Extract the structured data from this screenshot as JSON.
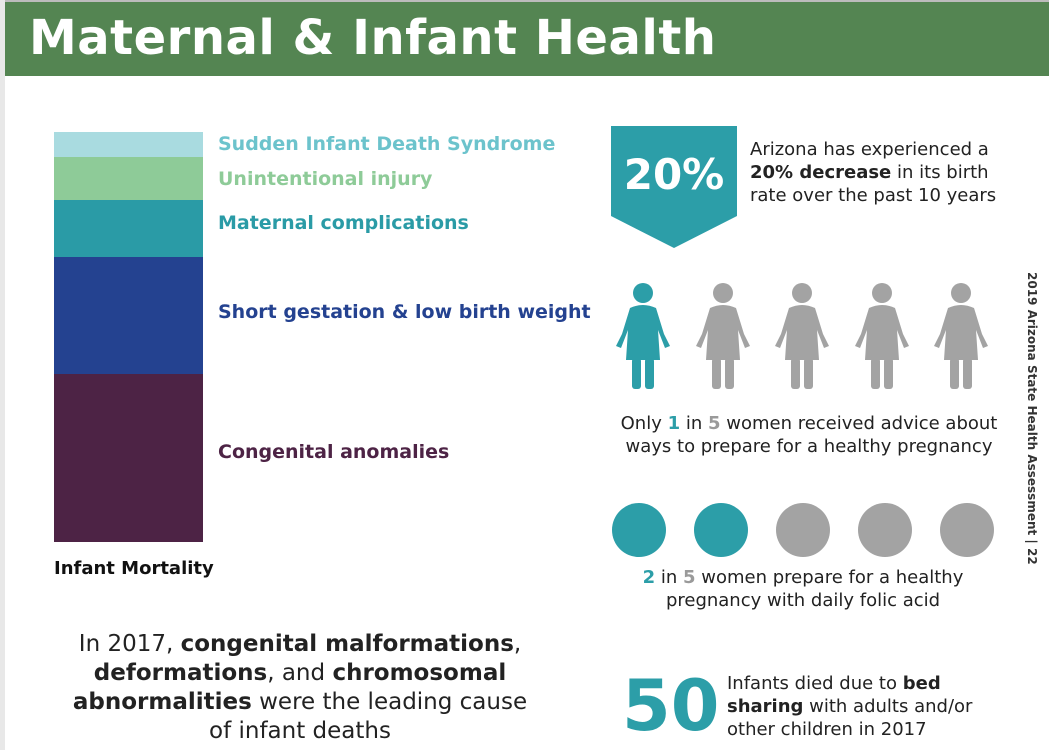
{
  "header": {
    "title": "Maternal & Infant Health"
  },
  "chart_data": {
    "type": "bar",
    "title": "Infant Mortality",
    "categories": [
      "Congenital anomalies",
      "Short gestation & low birth weight",
      "Maternal complications",
      "Unintentional injury",
      "Sudden Infant Death Syndrome"
    ],
    "values": [
      41,
      28.5,
      14,
      10.5,
      6
    ],
    "colors": [
      "#4d2345",
      "#244290",
      "#2a9ba6",
      "#8ecb98",
      "#a9dbe0"
    ],
    "label_colors": [
      "#4d2345",
      "#244290",
      "#2a9ba6",
      "#8ecb98",
      "#6cc3cc"
    ],
    "stacked": true
  },
  "stack_labels": {
    "sids": "Sudden Infant Death Syndrome",
    "injury": "Unintentional injury",
    "maternal": "Maternal complications",
    "gestation": "Short gestation & low birth weight",
    "congenital": "Congenital anomalies"
  },
  "stack_title": "Infant Mortality",
  "leading_cause": {
    "p1": "In 2017, ",
    "b1": "congenital malformations",
    "p2": ", ",
    "b2": "deformations",
    "p3": ", and ",
    "b3": "chromosomal abnormalities",
    "p4": " were the leading cause of infant deaths"
  },
  "birth_rate": {
    "badge": "20%",
    "p1": "Arizona has experienced a ",
    "b1": "20% decrease",
    "p2": " in its birth rate over the past 10 years"
  },
  "advice": {
    "p1": "Only ",
    "n1": "1",
    "p2": " in ",
    "n2": "5",
    "p3": " women received advice about ways to prepare for a healthy pregnancy",
    "highlighted": 1,
    "total": 5
  },
  "folic": {
    "n1": "2",
    "p1": " in ",
    "n2": "5",
    "p2": " women prepare for a healthy pregnancy with daily folic acid",
    "highlighted": 2,
    "total": 5
  },
  "bed_sharing": {
    "number": "50",
    "p1": "Infants died due to ",
    "b1": "bed sharing",
    "p2": " with adults and/or other children in 2017"
  },
  "side_label": "2019 Arizona State Health Assessment | 22",
  "colors": {
    "header_green": "#548552",
    "teal": "#2c9ea8",
    "gray": "#a3a3a3"
  },
  "icons": {
    "person": "woman-figure-icon",
    "circle": "circle-icon"
  }
}
